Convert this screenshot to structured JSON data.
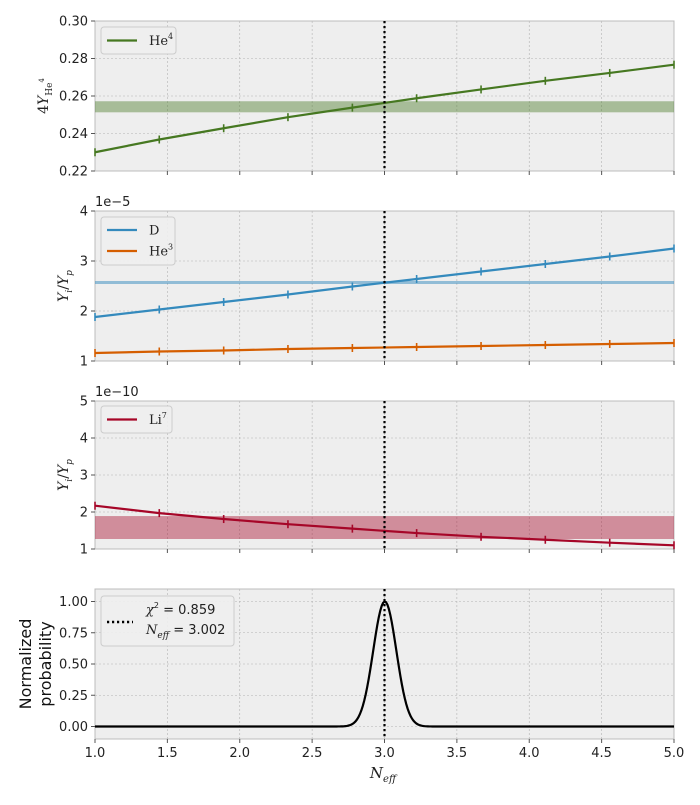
{
  "colors": {
    "he4": "#467821",
    "deut": "#348ABD",
    "he3": "#D55E00",
    "li7": "#A60628",
    "prob": "#000000",
    "panel_bg": "#EEEEEE",
    "grid": "#B2B2B2",
    "spine": "#BCBCBC"
  },
  "chart_data": [
    {
      "type": "line",
      "panel": "helium-4",
      "ylabel": "4Y_He4",
      "ylim": [
        0.22,
        0.3
      ],
      "xlim": [
        1.0,
        5.0
      ],
      "yticks": [
        "0.22",
        "0.24",
        "0.26",
        "0.28",
        "0.30"
      ],
      "yticks_values": [
        0.22,
        0.24,
        0.26,
        0.28,
        0.3
      ],
      "xticks_values": [
        1.5,
        2.0,
        2.5,
        3.0,
        3.5,
        4.0,
        4.5,
        5.0
      ],
      "grid": true,
      "legend_position": "top-left",
      "band": {
        "ymin": 0.2513,
        "ymax": 0.2572,
        "series": "He4"
      },
      "vline_x": 3.0,
      "series": [
        {
          "name": "He⁴",
          "color_key": "he4",
          "x": [
            1.0,
            1.444,
            1.889,
            2.333,
            2.778,
            3.222,
            3.667,
            4.111,
            4.556,
            5.0
          ],
          "values": [
            0.23,
            0.2368,
            0.2428,
            0.2487,
            0.2538,
            0.2588,
            0.2635,
            0.2681,
            0.2723,
            0.2767
          ]
        }
      ]
    },
    {
      "type": "line",
      "panel": "deuterium-helium3",
      "ylabel": "Y_i/Y_p",
      "ylim": [
        1,
        4
      ],
      "xlim": [
        1.0,
        5.0
      ],
      "yticks": [
        "1",
        "2",
        "3",
        "4"
      ],
      "yticks_values": [
        1,
        2,
        3,
        4
      ],
      "xticks_values": [
        1.5,
        2.0,
        2.5,
        3.0,
        3.5,
        4.0,
        4.5,
        5.0
      ],
      "offset_label": "1e−5",
      "grid": true,
      "legend_position": "top-left",
      "hline": {
        "y": 2.57,
        "series": "D"
      },
      "vline_x": 3.0,
      "series": [
        {
          "name": "D",
          "color_key": "deut",
          "x": [
            1.0,
            1.444,
            1.889,
            2.333,
            2.778,
            3.222,
            3.667,
            4.111,
            4.556,
            5.0
          ],
          "values": [
            1.88,
            2.03,
            2.18,
            2.33,
            2.49,
            2.64,
            2.79,
            2.94,
            3.09,
            3.25
          ]
        },
        {
          "name": "He³",
          "color_key": "he3",
          "x": [
            1.0,
            1.444,
            1.889,
            2.333,
            2.778,
            3.222,
            3.667,
            4.111,
            4.556,
            5.0
          ],
          "values": [
            1.16,
            1.19,
            1.21,
            1.24,
            1.26,
            1.28,
            1.3,
            1.32,
            1.34,
            1.36
          ]
        }
      ]
    },
    {
      "type": "line",
      "panel": "lithium-7",
      "ylabel": "Y_i/Y_p",
      "ylim": [
        1,
        5
      ],
      "xlim": [
        1.0,
        5.0
      ],
      "yticks": [
        "1",
        "2",
        "3",
        "4",
        "5"
      ],
      "yticks_values": [
        1,
        2,
        3,
        4,
        5
      ],
      "xticks_values": [
        1.5,
        2.0,
        2.5,
        3.0,
        3.5,
        4.0,
        4.5,
        5.0
      ],
      "offset_label": "1e−10",
      "grid": true,
      "legend_position": "top-left",
      "band": {
        "ymin": 1.27,
        "ymax": 1.89,
        "series": "Li7"
      },
      "vline_x": 3.0,
      "series": [
        {
          "name": "Li⁷",
          "color_key": "li7",
          "x": [
            1.0,
            1.444,
            1.889,
            2.333,
            2.778,
            3.222,
            3.667,
            4.111,
            4.556,
            5.0
          ],
          "values": [
            2.17,
            1.97,
            1.81,
            1.67,
            1.55,
            1.43,
            1.33,
            1.25,
            1.17,
            1.1
          ]
        }
      ]
    },
    {
      "type": "line",
      "panel": "probability",
      "ylabel_line1": "Normalized",
      "ylabel_line2": "probability",
      "xlabel": "N_eff",
      "ylim": [
        -0.1,
        1.1
      ],
      "xlim": [
        1.0,
        5.0
      ],
      "yticks": [
        "0.00",
        "0.25",
        "0.50",
        "0.75",
        "1.00"
      ],
      "yticks_values": [
        0.0,
        0.25,
        0.5,
        0.75,
        1.0
      ],
      "xticks": [
        "1.0",
        "1.5",
        "2.0",
        "2.5",
        "3.0",
        "3.5",
        "4.0",
        "4.5",
        "5.0"
      ],
      "xticks_values": [
        1.0,
        1.5,
        2.0,
        2.5,
        3.0,
        3.5,
        4.0,
        4.5,
        5.0
      ],
      "grid": true,
      "legend_position": "top-left",
      "legend_chi2_label": "χ² = 0.859",
      "legend_neff_label": "N_eff = 3.002",
      "vline_x": 3.0,
      "series": [
        {
          "name": "probability",
          "color_key": "prob",
          "peak_x": 3.002,
          "sigma": 0.08,
          "peak": 1.0
        }
      ]
    }
  ]
}
